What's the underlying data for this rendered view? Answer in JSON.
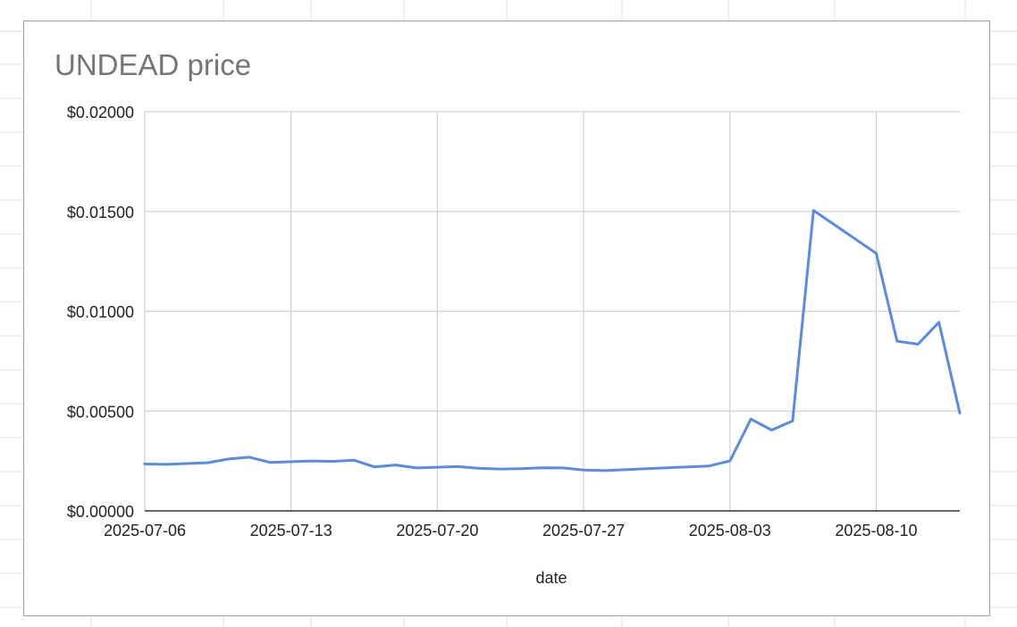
{
  "chart_data": {
    "type": "line",
    "title": "UNDEAD price",
    "xlabel": "date",
    "ylabel": "",
    "x_range": [
      "2025-07-06",
      "2025-08-14"
    ],
    "ylim": [
      0,
      0.02
    ],
    "x_ticks": [
      "2025-07-06",
      "2025-07-13",
      "2025-07-20",
      "2025-07-27",
      "2025-08-03",
      "2025-08-10"
    ],
    "y_ticks": [
      "$0.00000",
      "$0.00500",
      "$0.01000",
      "$0.01500",
      "$0.02000"
    ],
    "y_tick_values": [
      0,
      0.005,
      0.01,
      0.015,
      0.02
    ],
    "grid": true,
    "legend": "none",
    "line_color": "#5a8ae4",
    "series": [
      {
        "name": "",
        "points": [
          {
            "x": "2025-07-06",
            "y": 0.00235
          },
          {
            "x": "2025-07-07",
            "y": 0.00233
          },
          {
            "x": "2025-07-09",
            "y": 0.00241
          },
          {
            "x": "2025-07-10",
            "y": 0.0026
          },
          {
            "x": "2025-07-11",
            "y": 0.00269
          },
          {
            "x": "2025-07-12",
            "y": 0.00243
          },
          {
            "x": "2025-07-14",
            "y": 0.0025
          },
          {
            "x": "2025-07-15",
            "y": 0.00248
          },
          {
            "x": "2025-07-16",
            "y": 0.00254
          },
          {
            "x": "2025-07-17",
            "y": 0.0022
          },
          {
            "x": "2025-07-18",
            "y": 0.0023
          },
          {
            "x": "2025-07-19",
            "y": 0.00215
          },
          {
            "x": "2025-07-21",
            "y": 0.00222
          },
          {
            "x": "2025-07-22",
            "y": 0.00213
          },
          {
            "x": "2025-07-23",
            "y": 0.0021
          },
          {
            "x": "2025-07-24",
            "y": 0.00211
          },
          {
            "x": "2025-07-25",
            "y": 0.00216
          },
          {
            "x": "2025-07-26",
            "y": 0.00215
          },
          {
            "x": "2025-07-27",
            "y": 0.00205
          },
          {
            "x": "2025-07-28",
            "y": 0.00202
          },
          {
            "x": "2025-08-02",
            "y": 0.00225
          },
          {
            "x": "2025-08-03",
            "y": 0.0025
          },
          {
            "x": "2025-08-04",
            "y": 0.0046
          },
          {
            "x": "2025-08-05",
            "y": 0.00405
          },
          {
            "x": "2025-08-06",
            "y": 0.00451
          },
          {
            "x": "2025-08-07",
            "y": 0.01505
          },
          {
            "x": "2025-08-10",
            "y": 0.0129
          },
          {
            "x": "2025-08-11",
            "y": 0.0085
          },
          {
            "x": "2025-08-12",
            "y": 0.00835
          },
          {
            "x": "2025-08-13",
            "y": 0.00945
          },
          {
            "x": "2025-08-14",
            "y": 0.0049
          }
        ]
      }
    ]
  }
}
